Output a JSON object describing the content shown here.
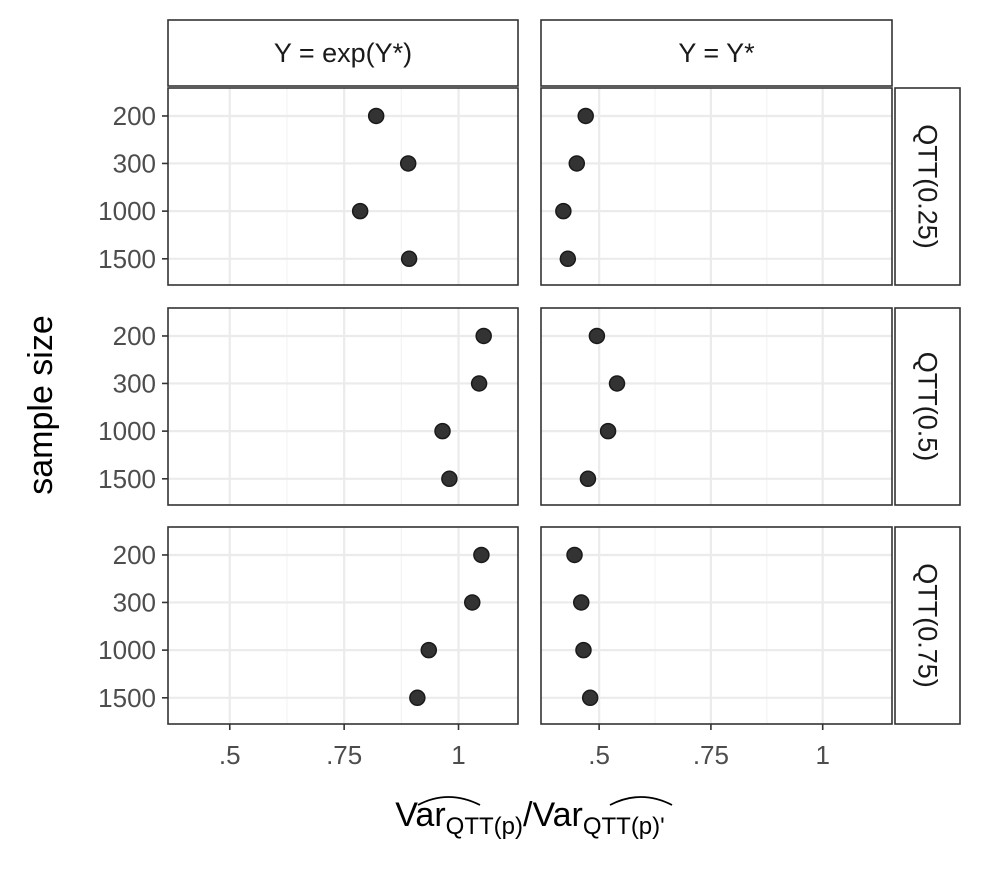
{
  "chart_data": {
    "type": "scatter",
    "facet_columns": [
      "Y = exp(Y*)",
      "Y = Y*"
    ],
    "facet_rows": [
      "QTT(0.25)",
      "QTT(0.5)",
      "QTT(0.75)"
    ],
    "y_categories": [
      "200",
      "300",
      "1000",
      "1500"
    ],
    "xlabel": {
      "prefix": "Var",
      "subscript": "QTT(p)",
      "separator": "/",
      "prefix2": "Var",
      "subscript2": "QTT(p)'"
    },
    "ylabel": "sample size",
    "x_ticks": [
      {
        "value": 0.5,
        "label": ".5"
      },
      {
        "value": 0.75,
        "label": ".75"
      },
      {
        "value": 1.0,
        "label": "1"
      }
    ],
    "panels": [
      {
        "column": "Y = exp(Y*)",
        "row": "QTT(0.25)",
        "xlim": [
          0.365,
          1.13
        ],
        "points": [
          {
            "n": "200",
            "x": 0.82
          },
          {
            "n": "300",
            "x": 0.89
          },
          {
            "n": "1000",
            "x": 0.785
          },
          {
            "n": "1500",
            "x": 0.892
          }
        ]
      },
      {
        "column": "Y = Y*",
        "row": "QTT(0.25)",
        "xlim": [
          0.37,
          1.155
        ],
        "points": [
          {
            "n": "200",
            "x": 0.47
          },
          {
            "n": "300",
            "x": 0.45
          },
          {
            "n": "1000",
            "x": 0.42
          },
          {
            "n": "1500",
            "x": 0.43
          }
        ]
      },
      {
        "column": "Y = exp(Y*)",
        "row": "QTT(0.5)",
        "xlim": [
          0.365,
          1.13
        ],
        "points": [
          {
            "n": "200",
            "x": 1.055
          },
          {
            "n": "300",
            "x": 1.045
          },
          {
            "n": "1000",
            "x": 0.965
          },
          {
            "n": "1500",
            "x": 0.98
          }
        ]
      },
      {
        "column": "Y = Y*",
        "row": "QTT(0.5)",
        "xlim": [
          0.37,
          1.155
        ],
        "points": [
          {
            "n": "200",
            "x": 0.495
          },
          {
            "n": "300",
            "x": 0.54
          },
          {
            "n": "1000",
            "x": 0.52
          },
          {
            "n": "1500",
            "x": 0.475
          }
        ]
      },
      {
        "column": "Y = exp(Y*)",
        "row": "QTT(0.75)",
        "xlim": [
          0.365,
          1.13
        ],
        "points": [
          {
            "n": "200",
            "x": 1.05
          },
          {
            "n": "300",
            "x": 1.03
          },
          {
            "n": "1000",
            "x": 0.935
          },
          {
            "n": "1500",
            "x": 0.91
          }
        ]
      },
      {
        "column": "Y = Y*",
        "row": "QTT(0.75)",
        "xlim": [
          0.37,
          1.155
        ],
        "points": [
          {
            "n": "200",
            "x": 0.445
          },
          {
            "n": "300",
            "x": 0.46
          },
          {
            "n": "1000",
            "x": 0.465
          },
          {
            "n": "1500",
            "x": 0.48
          }
        ]
      }
    ],
    "grid": true,
    "legend": "none"
  }
}
